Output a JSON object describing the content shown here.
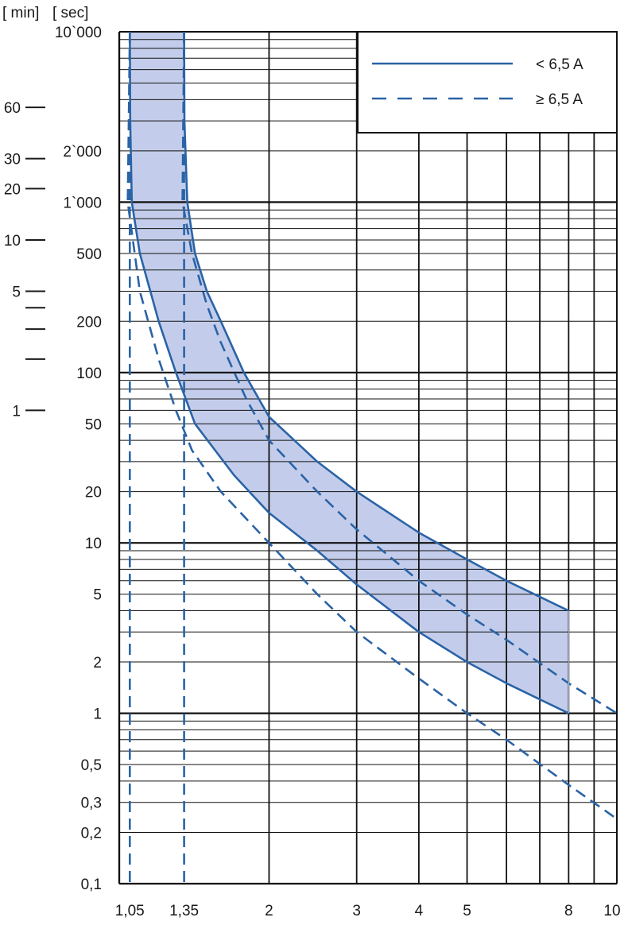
{
  "chart_data": {
    "type": "line",
    "title": "",
    "xlabel": "",
    "ylabel": "[ sec]",
    "ylabel_secondary": "[ min]",
    "x_scale": "log",
    "y_scale": "log",
    "xlim": [
      1,
      10
    ],
    "ylim": [
      0.1,
      10000
    ],
    "grid": true,
    "legend_position": "top-right",
    "colors": {
      "curve": "#2a63a6",
      "band_fill": "#c3cdeb",
      "grid": "#111111"
    },
    "x_ticks": [
      {
        "value": 1.05,
        "label": "1,05"
      },
      {
        "value": 1.35,
        "label": "1,35"
      },
      {
        "value": 2,
        "label": "2"
      },
      {
        "value": 3,
        "label": "3"
      },
      {
        "value": 4,
        "label": "4"
      },
      {
        "value": 5,
        "label": "5"
      },
      {
        "value": 8,
        "label": "8"
      },
      {
        "value": 10,
        "label": "10"
      }
    ],
    "y_ticks": [
      {
        "value": 10000,
        "label": "10`000"
      },
      {
        "value": 2000,
        "label": "2`000"
      },
      {
        "value": 1000,
        "label": "1`000"
      },
      {
        "value": 500,
        "label": "500"
      },
      {
        "value": 200,
        "label": "200"
      },
      {
        "value": 100,
        "label": "100"
      },
      {
        "value": 50,
        "label": "50"
      },
      {
        "value": 20,
        "label": "20"
      },
      {
        "value": 10,
        "label": "10"
      },
      {
        "value": 5,
        "label": "5"
      },
      {
        "value": 2,
        "label": "2"
      },
      {
        "value": 1,
        "label": "1"
      },
      {
        "value": 0.5,
        "label": "0,5"
      },
      {
        "value": 0.3,
        "label": "0,3"
      },
      {
        "value": 0.2,
        "label": "0,2"
      },
      {
        "value": 0.1,
        "label": "0,1"
      }
    ],
    "min_ticks": [
      {
        "value": 3600,
        "label": "60"
      },
      {
        "value": 1800,
        "label": "30"
      },
      {
        "value": 1200,
        "label": "20"
      },
      {
        "value": 600,
        "label": "10"
      },
      {
        "value": 300,
        "label": "5"
      },
      {
        "value": 240,
        "label": ""
      },
      {
        "value": 180,
        "label": ""
      },
      {
        "value": 120,
        "label": ""
      },
      {
        "value": 60,
        "label": "1"
      }
    ],
    "legend": [
      {
        "label": "< 6,5 A",
        "style": "solid"
      },
      {
        "label": "≥ 6,5 A",
        "style": "dashed"
      }
    ],
    "series": [
      {
        "style": "solid",
        "points": [
          [
            1.05,
            10000
          ],
          [
            1.052,
            3000
          ],
          [
            1.06,
            1000
          ],
          [
            1.1,
            500
          ],
          [
            1.2,
            200
          ],
          [
            1.3,
            100
          ],
          [
            1.42,
            50
          ],
          [
            1.7,
            25
          ],
          [
            2,
            15
          ],
          [
            2.5,
            9
          ],
          [
            3,
            5.7
          ],
          [
            4,
            3
          ],
          [
            5,
            2
          ],
          [
            6,
            1.5
          ],
          [
            8,
            1
          ]
        ]
      },
      {
        "style": "solid",
        "points": [
          [
            1.35,
            10000
          ],
          [
            1.352,
            3000
          ],
          [
            1.37,
            1000
          ],
          [
            1.42,
            500
          ],
          [
            1.5,
            300
          ],
          [
            1.6,
            200
          ],
          [
            1.78,
            100
          ],
          [
            2,
            55
          ],
          [
            2.5,
            30
          ],
          [
            3,
            20
          ],
          [
            4,
            11.5
          ],
          [
            5,
            8
          ],
          [
            6,
            6
          ],
          [
            8,
            4
          ]
        ]
      },
      {
        "style": "dashed",
        "points": [
          [
            1.05,
            10000
          ],
          [
            1.045,
            3000
          ],
          [
            1.04,
            1000
          ],
          [
            1.1,
            300
          ],
          [
            1.2,
            120
          ],
          [
            1.3,
            60
          ],
          [
            1.4,
            35
          ],
          [
            1.6,
            20
          ],
          [
            2,
            10
          ],
          [
            2.5,
            5
          ],
          [
            3,
            3
          ],
          [
            4,
            1.6
          ],
          [
            5,
            1
          ],
          [
            6,
            0.7
          ],
          [
            8,
            0.38
          ],
          [
            10,
            0.24
          ]
        ]
      },
      {
        "style": "dashed",
        "points": [
          [
            1.35,
            10000
          ],
          [
            1.34,
            1000
          ],
          [
            1.4,
            500
          ],
          [
            1.5,
            250
          ],
          [
            1.6,
            150
          ],
          [
            1.8,
            70
          ],
          [
            2,
            40
          ],
          [
            2.5,
            20
          ],
          [
            3,
            12
          ],
          [
            4,
            6
          ],
          [
            5,
            3.8
          ],
          [
            6,
            2.7
          ],
          [
            8,
            1.5
          ],
          [
            10,
            1
          ]
        ]
      },
      {
        "style": "dashed",
        "points": [
          [
            1.05,
            10000
          ],
          [
            1.05,
            0.1
          ]
        ]
      },
      {
        "style": "dashed",
        "points": [
          [
            1.35,
            10000
          ],
          [
            1.35,
            0.1
          ]
        ]
      }
    ]
  },
  "axis_headers": {
    "min": "[ min]",
    "sec": "[ sec]"
  }
}
